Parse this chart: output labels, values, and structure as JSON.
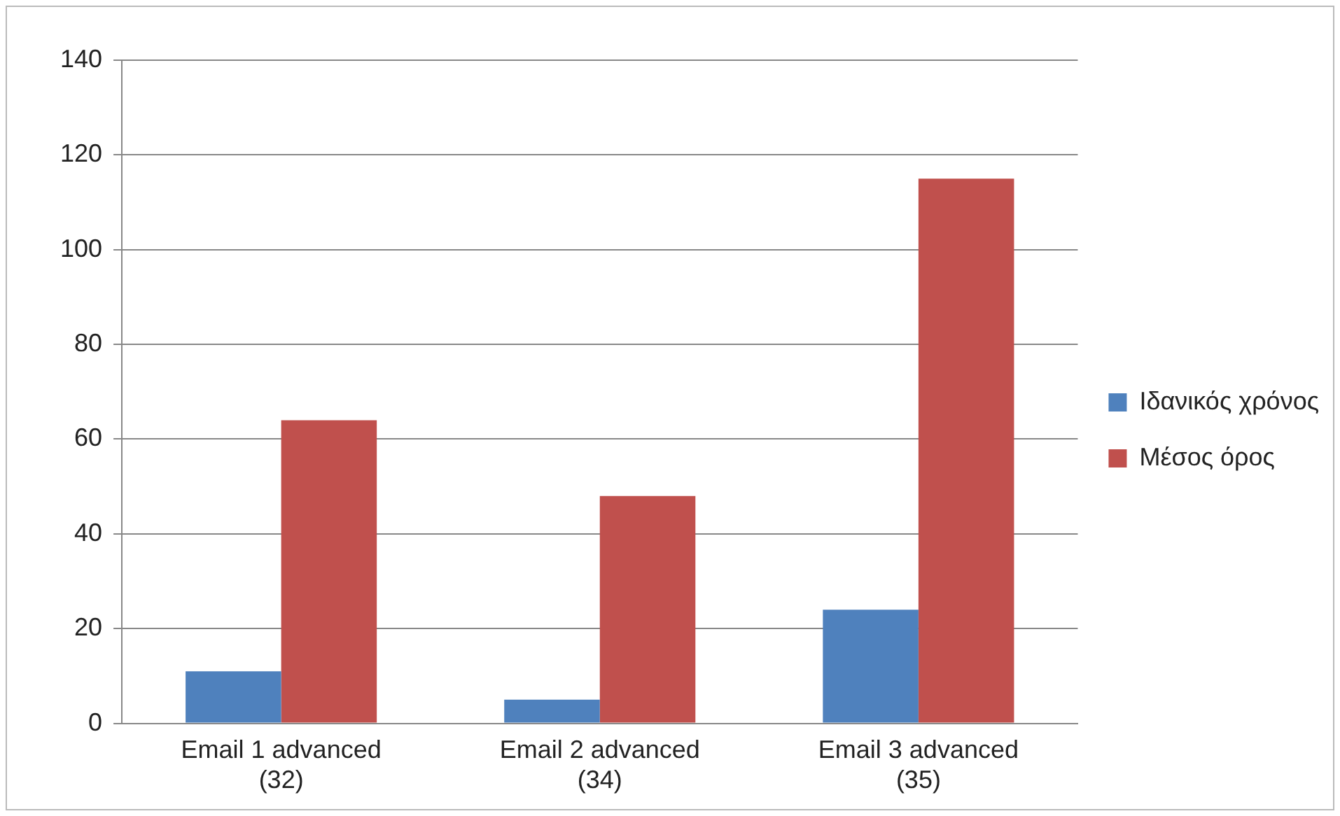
{
  "chart_data": {
    "type": "bar",
    "categories": [
      "Email 1 advanced (32)",
      "Email 2 advanced (34)",
      "Email 3 advanced (35)"
    ],
    "series": [
      {
        "name": "Ιδανικός χρόνος",
        "color": "#4f81bd",
        "values": [
          11,
          5,
          24
        ]
      },
      {
        "name": "Μέσος όρος",
        "color": "#c0504d",
        "values": [
          64,
          48,
          115
        ]
      }
    ],
    "ylim": [
      0,
      140
    ],
    "yticks": [
      0,
      20,
      40,
      60,
      80,
      100,
      120,
      140
    ],
    "grid": "y",
    "legend": "right"
  }
}
